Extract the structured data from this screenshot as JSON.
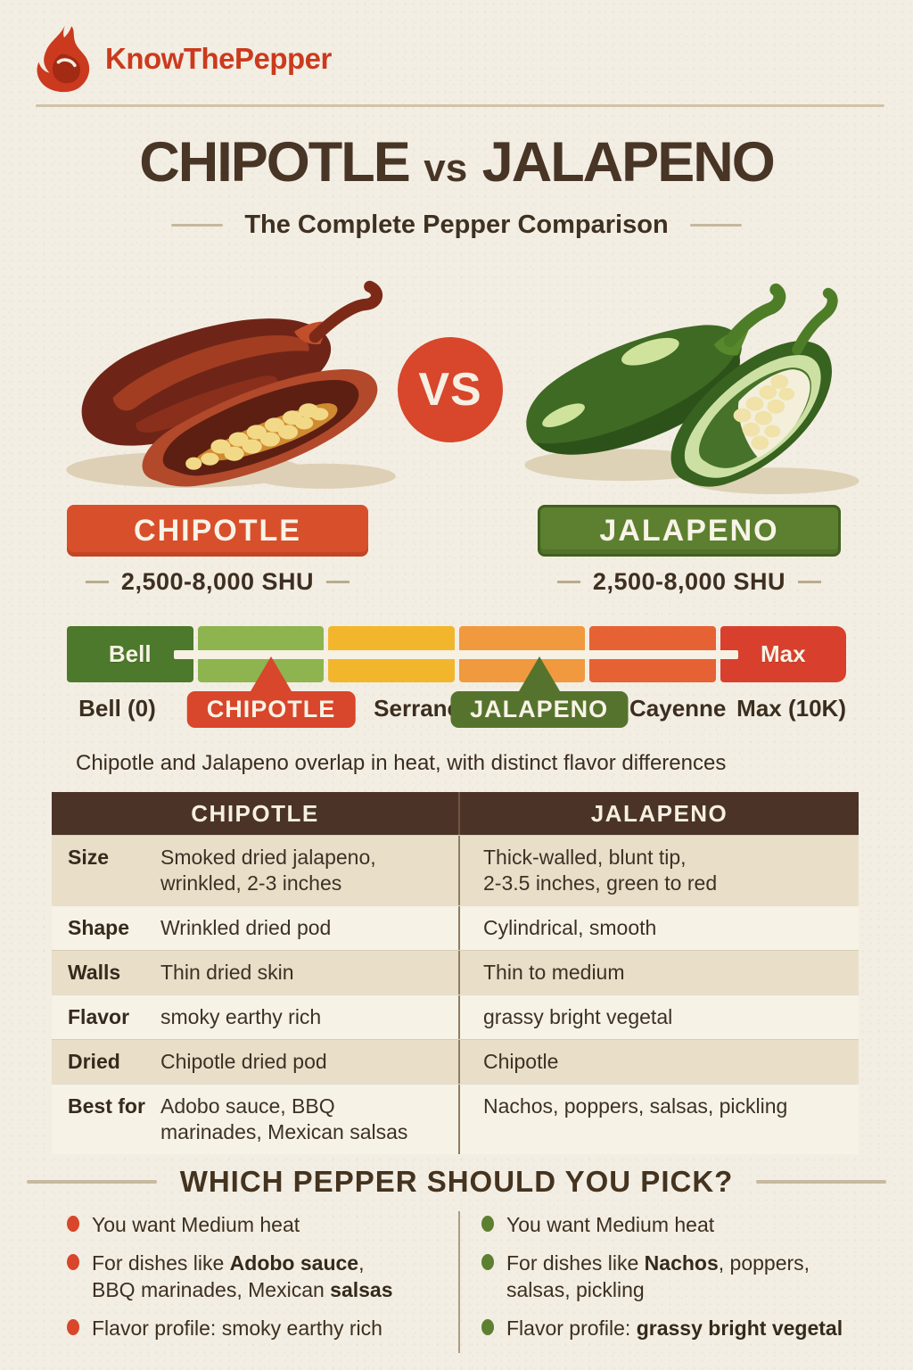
{
  "brand": {
    "name": "KnowThePepper"
  },
  "icons": {
    "logo": "flame-icon",
    "left_illustration": "chipotle-peppers-illustration",
    "right_illustration": "jalapeno-peppers-illustration"
  },
  "title": {
    "left": "CHIPOTLE",
    "vs": "vs",
    "right": "JALAPENO",
    "subtitle": "The Complete Pepper Comparison"
  },
  "vs_badge": "VS",
  "contenders": [
    {
      "name": "CHIPOTLE",
      "shu": "2,500-8,000 SHU",
      "color": "#d84f2b"
    },
    {
      "name": "JALAPENO",
      "shu": "2,500-8,000 SHU",
      "color": "#5c8030"
    }
  ],
  "scale": {
    "segments": [
      {
        "name": "bell",
        "color": "#4c792c",
        "label": "Bell"
      },
      {
        "name": "light-green",
        "color": "#8db44e"
      },
      {
        "name": "yellow",
        "color": "#f2b62d"
      },
      {
        "name": "orange",
        "color": "#f1993e"
      },
      {
        "name": "deep-orange",
        "color": "#e66234"
      },
      {
        "name": "max",
        "color": "#d8402d",
        "label": "Max"
      }
    ],
    "markers": [
      {
        "label": "CHIPOTLE",
        "color": "#d8462b",
        "center_pct": 26.2
      },
      {
        "label": "JALAPENO",
        "color": "#55732d",
        "center_pct": 60.6
      }
    ],
    "axis_labels": [
      {
        "text": "Bell (0)",
        "pct": 1.5,
        "align": "left"
      },
      {
        "text": "Serrano",
        "pct": 45,
        "align": "center"
      },
      {
        "text": "Cayenne",
        "pct": 78.4,
        "align": "center"
      },
      {
        "text": "Max (10K)",
        "pct": 100,
        "align": "right"
      }
    ],
    "caption": "Chipotle and Jalapeno overlap in heat, with distinct flavor differences"
  },
  "table": {
    "headers": [
      "CHIPOTLE",
      "JALAPENO"
    ],
    "rows": [
      {
        "label": "Size",
        "chipotle": [
          "Smoked dried jalapeno,",
          "wrinkled, 2-3 inches"
        ],
        "jalapeno": [
          "Thick-walled, blunt tip,",
          "2-3.5 inches, green to red"
        ]
      },
      {
        "label": "Shape",
        "chipotle": [
          "Wrinkled dried pod"
        ],
        "jalapeno": [
          "Cylindrical, smooth"
        ]
      },
      {
        "label": "Walls",
        "chipotle": [
          "Thin dried skin"
        ],
        "jalapeno": [
          "Thin to medium"
        ]
      },
      {
        "label": "Flavor",
        "chipotle": [
          "smoky  earthy rich"
        ],
        "jalapeno": [
          "grassy bright vegetal"
        ]
      },
      {
        "label": "Dried",
        "chipotle": [
          "Chipotle dried pod"
        ],
        "jalapeno": [
          "Chipotle"
        ]
      },
      {
        "label": "Best for",
        "chipotle": [
          "Adobo sauce, BBQ",
          "marinades, Mexican  salsas"
        ],
        "jalapeno": [
          "Nachos, poppers, salsas, pickling"
        ]
      }
    ]
  },
  "pick": {
    "title": "WHICH PEPPER SHOULD YOU PICK?",
    "columns": [
      {
        "side": "chipotle",
        "bullet_color": "#d8462b",
        "items": [
          [
            {
              "t": "You want Medium heat"
            }
          ],
          [
            {
              "t": "For dishes like "
            },
            {
              "t": "Adobo sauce",
              "b": true
            },
            {
              "t": ","
            },
            {
              "br": true
            },
            {
              "t": "BBQ marinades, Mexican "
            },
            {
              "t": "salsas",
              "b": true
            }
          ],
          [
            {
              "t": "Flavor profile: smoky earthy rich"
            }
          ]
        ]
      },
      {
        "side": "jalapeno",
        "bullet_color": "#5c8030",
        "items": [
          [
            {
              "t": "You want Medium heat"
            }
          ],
          [
            {
              "t": "For dishes like "
            },
            {
              "t": "Nachos",
              "b": true
            },
            {
              "t": ", poppers,"
            },
            {
              "br": true
            },
            {
              "t": "salsas, pickling"
            }
          ],
          [
            {
              "t": "Flavor profile: "
            },
            {
              "t": "grassy bright vegetal",
              "b": true
            }
          ]
        ]
      }
    ]
  }
}
